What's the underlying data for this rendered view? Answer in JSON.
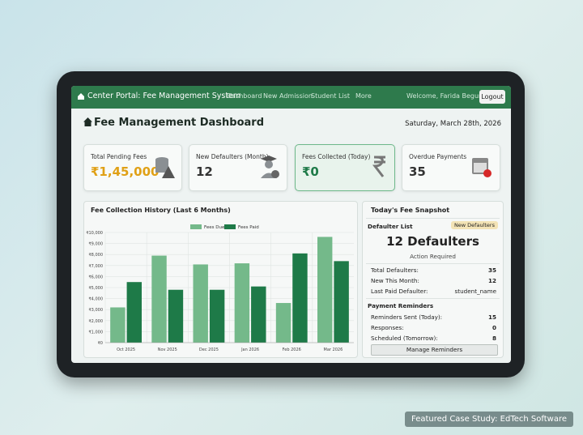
{
  "nav": {
    "brand": "Center Portal: Fee Management System",
    "links": [
      "Dashboard",
      "New Admission",
      "Student List",
      "More"
    ],
    "welcome": "Welcome, Farida Begum",
    "logout": "Logout"
  },
  "header": {
    "title": "Fee Management Dashboard",
    "date": "Saturday, March 28th, 2026"
  },
  "cards": [
    {
      "label": "Total Pending Fees",
      "value": "₹1,45,000"
    },
    {
      "label": "New Defaulters (Month)",
      "value": "12"
    },
    {
      "label": "Fees Collected (Today)",
      "value": "₹0"
    },
    {
      "label": "Overdue Payments",
      "value": "35"
    }
  ],
  "chart_data": {
    "type": "bar",
    "title": "Fee Collection History (Last 6 Months)",
    "categories": [
      "Oct 2025",
      "Nov 2025",
      "Dec 2025",
      "Jan 2026",
      "Feb 2026",
      "Mar 2026"
    ],
    "series": [
      {
        "name": "Fees Due",
        "color": "#74b98a",
        "values": [
          3200,
          7900,
          7100,
          7200,
          3600,
          9600
        ]
      },
      {
        "name": "Fees Paid",
        "color": "#1e7a48",
        "values": [
          5500,
          4800,
          4800,
          5100,
          8100,
          7400
        ]
      }
    ],
    "ylim": [
      0,
      10000
    ],
    "yticks": [
      {
        "value": 0,
        "label": "₹0"
      },
      {
        "value": 1000,
        "label": "₹1,000"
      },
      {
        "value": 2000,
        "label": "₹2,000"
      },
      {
        "value": 3000,
        "label": "₹3,000"
      },
      {
        "value": 4000,
        "label": "₹4,000"
      },
      {
        "value": 5000,
        "label": "₹5,000"
      },
      {
        "value": 6000,
        "label": "₹6,000"
      },
      {
        "value": 7000,
        "label": "₹7,000"
      },
      {
        "value": 8000,
        "label": "₹8,000"
      },
      {
        "value": 9000,
        "label": "₹9,000"
      },
      {
        "value": 10000,
        "label": "₹10,000"
      }
    ],
    "grid": true
  },
  "snapshot": {
    "title": "Today's Fee Snapshot",
    "list_title": "Defaulter List",
    "badge": "New Defaulters",
    "headline": "12 Defaulters",
    "subline": "Action Required",
    "rows": [
      [
        "Total Defaulters:",
        "35"
      ],
      [
        "New This Month:",
        "12"
      ],
      [
        "Last Paid Defaulter:",
        "student_name"
      ]
    ],
    "reminders_title": "Payment Reminders",
    "reminder_rows": [
      [
        "Reminders Sent (Today):",
        "15"
      ],
      [
        "Responses:",
        "0"
      ],
      [
        "Scheduled (Tomorrow):",
        "8"
      ]
    ],
    "button": "Manage Reminders"
  },
  "caption": {
    "prefix": "Featured Case Study:",
    "highlight": "EdTech Software"
  }
}
